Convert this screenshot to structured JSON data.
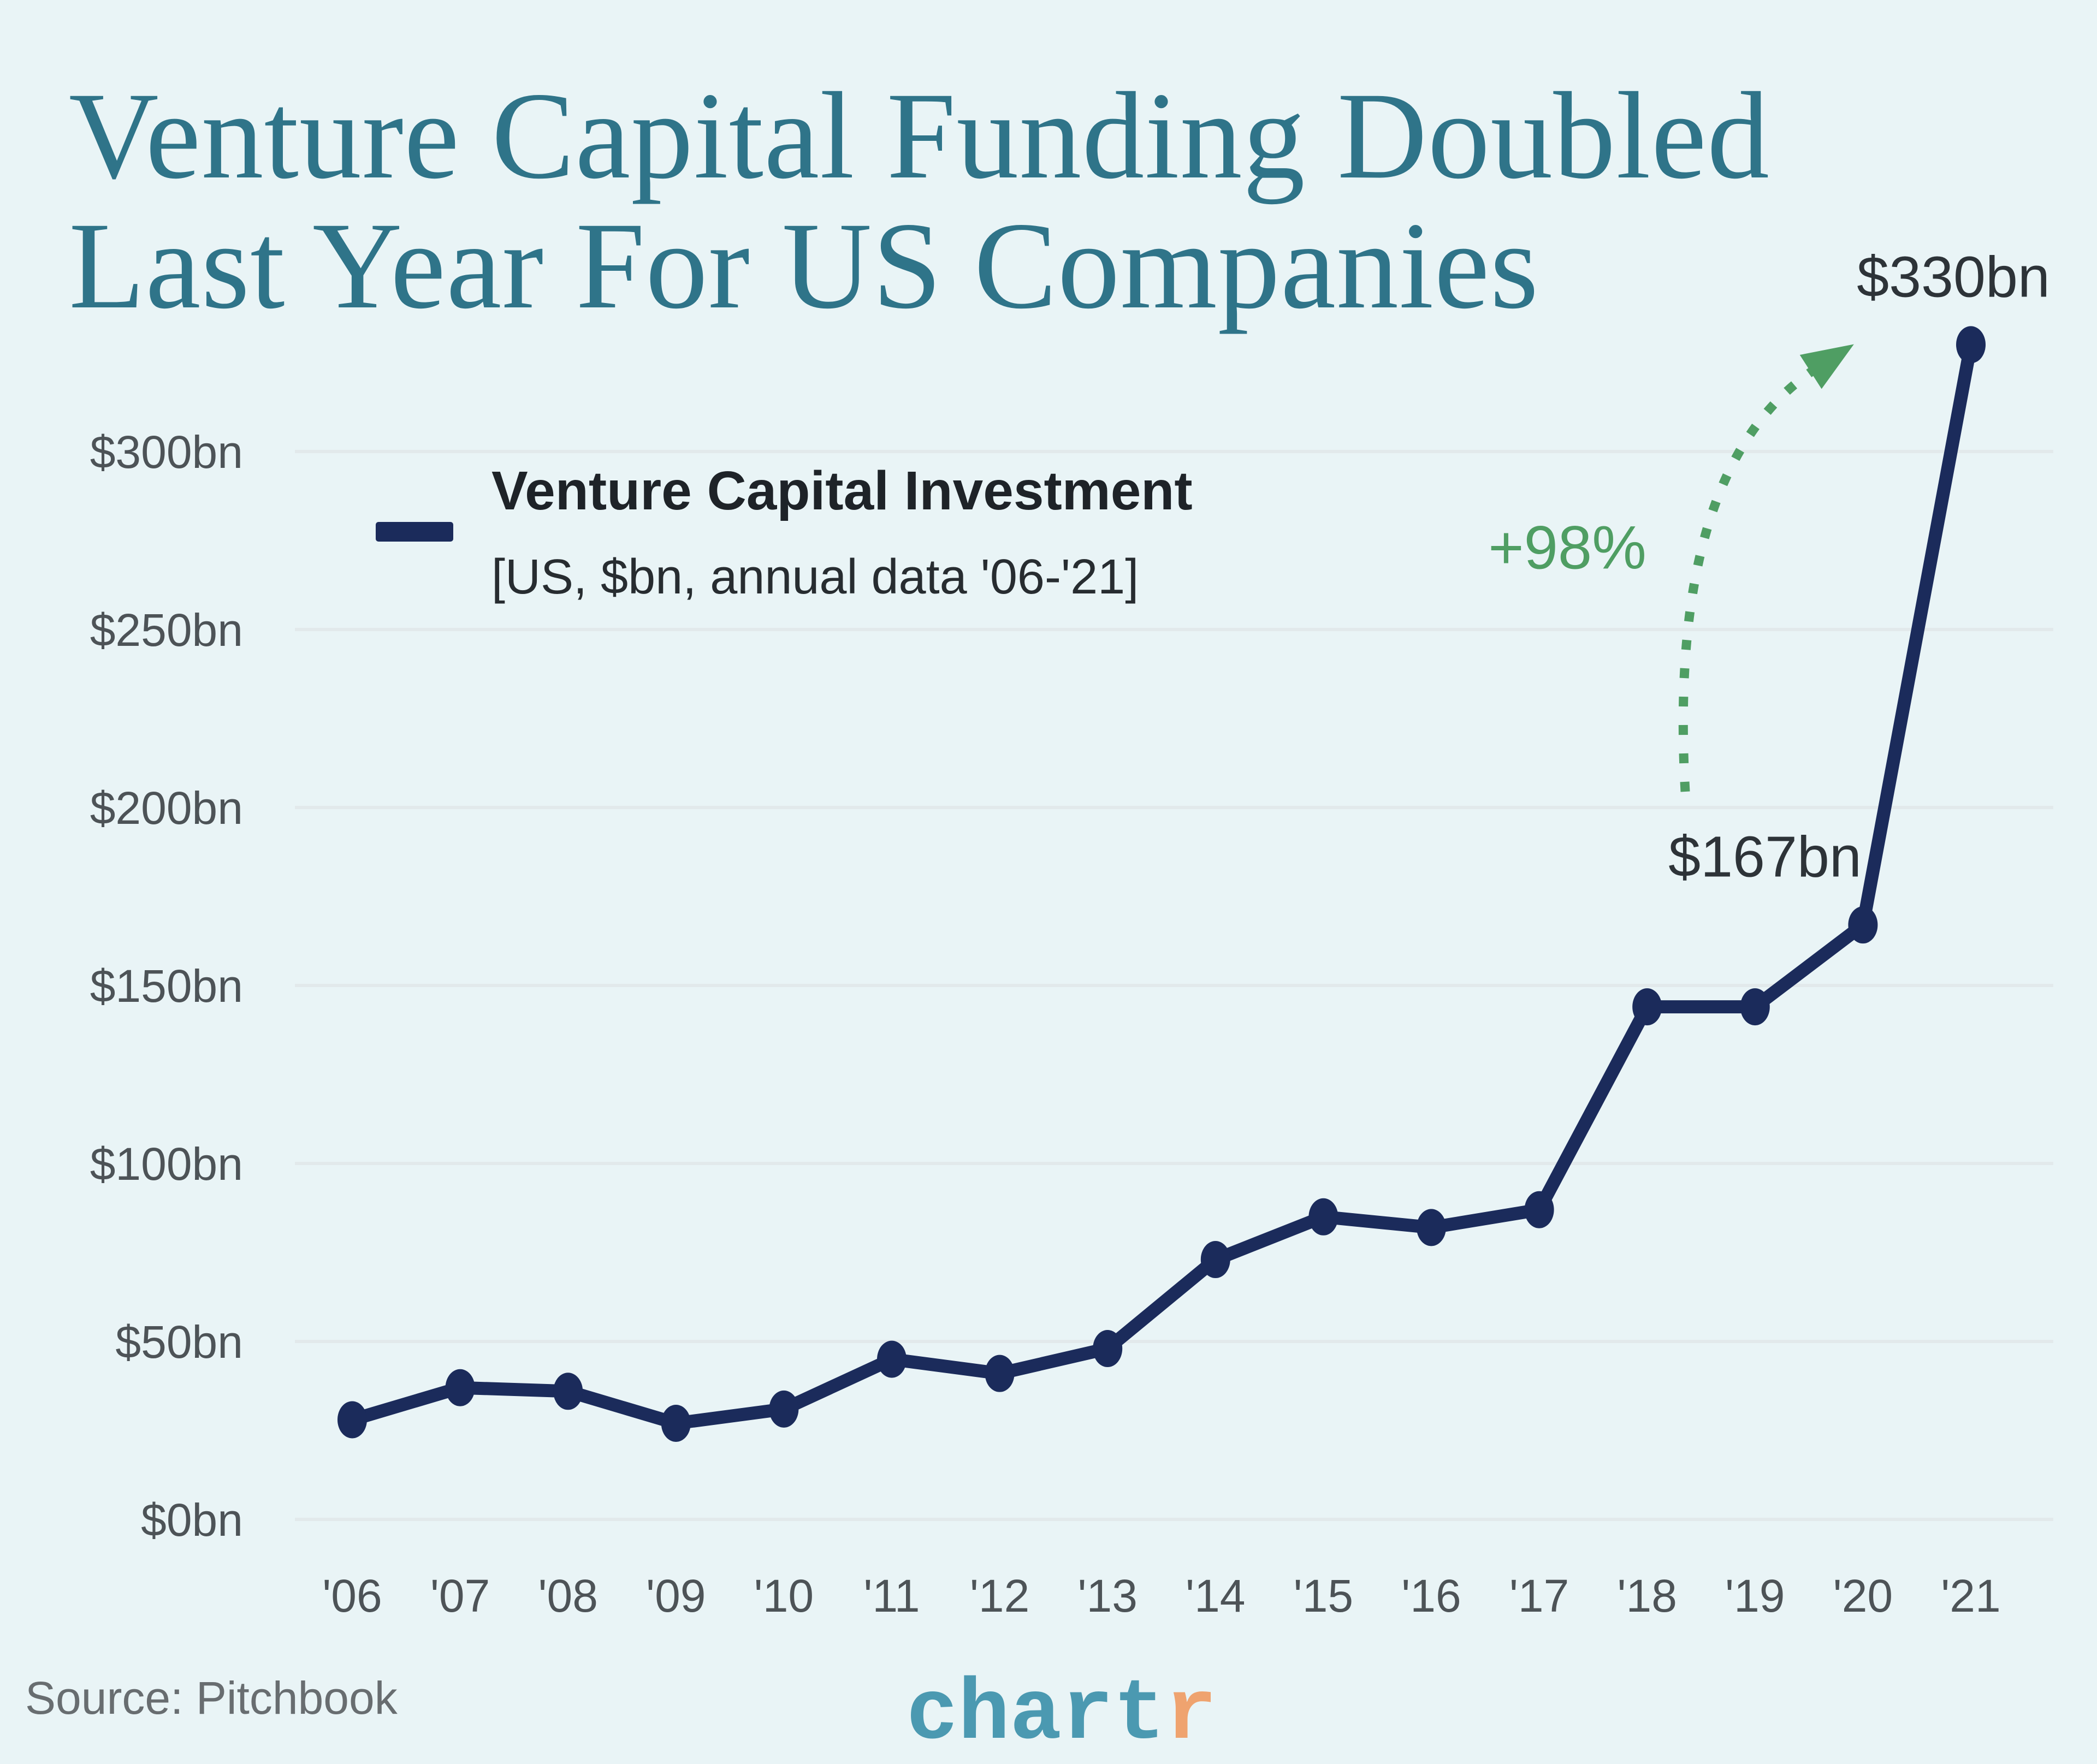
{
  "title": {
    "line1": "Venture Capital Funding Doubled",
    "line2": "Last Year For US Companies"
  },
  "legend": {
    "series_label": "Venture Capital Investment",
    "series_sub": "[US, $bn, annual data '06-'21]"
  },
  "annotations": {
    "peak": "$330bn",
    "prev": "$167bn",
    "pct": "+98%"
  },
  "source": "Source: Pitchbook",
  "logo": {
    "part1": "chart",
    "part2": "r"
  },
  "colors": {
    "background": "#e9f4f6",
    "title_teal": "#2f7489",
    "line_navy": "#1b2b5b",
    "arrow_green": "#4f9e63",
    "axis_gray": "#4d5357",
    "gridline": "#e2e9eb",
    "annotation_dark": "#2d3338",
    "source_gray": "#686d70",
    "logo_teal": "#4b99b1",
    "logo_orange": "#efa36f"
  },
  "chart_data": {
    "type": "line",
    "title": "Venture Capital Funding Doubled Last Year For US Companies",
    "xlabel": "",
    "ylabel": "",
    "unit": "US $bn, annual data",
    "categories": [
      "'06",
      "'07",
      "'08",
      "'09",
      "'10",
      "'11",
      "'12",
      "'13",
      "'14",
      "'15",
      "'16",
      "'17",
      "'18",
      "'19",
      "'20",
      "'21"
    ],
    "series": [
      {
        "name": "Venture Capital Investment",
        "values": [
          28,
          37,
          36,
          27,
          31,
          45,
          41,
          48,
          73,
          85,
          82,
          87,
          144,
          144,
          167,
          330
        ]
      }
    ],
    "ylim": [
      0,
      345
    ],
    "ytick_labels": [
      "$0bn",
      "$50bn",
      "$100bn",
      "$150bn",
      "$200bn",
      "$250bn",
      "$300bn"
    ],
    "ytick_values": [
      0,
      50,
      100,
      150,
      200,
      250,
      300
    ],
    "grid": true,
    "legend_position": "top-left",
    "point_annotations": [
      {
        "target": "'21",
        "text": "$330bn"
      },
      {
        "target": "'20",
        "text": "$167bn"
      },
      {
        "text": "+98%",
        "type": "growth-arrow",
        "from": "'20",
        "to": "'21"
      }
    ]
  }
}
